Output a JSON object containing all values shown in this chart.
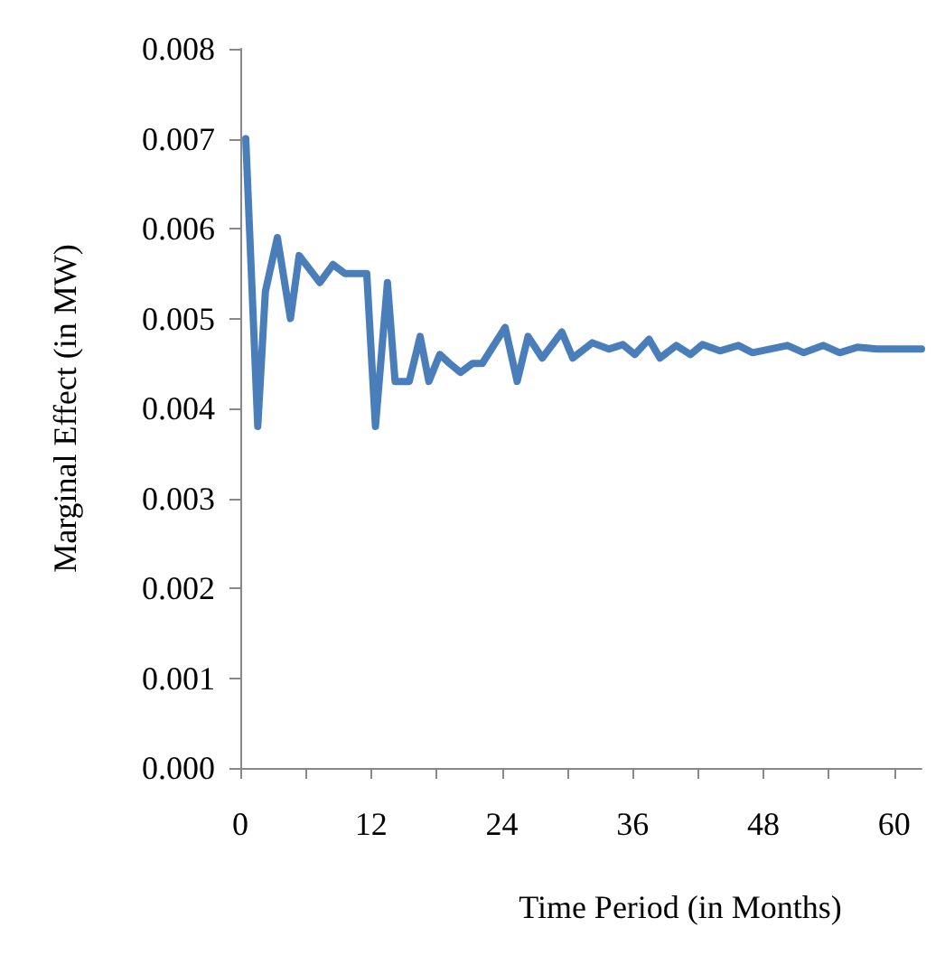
{
  "chart_data": {
    "type": "line",
    "xlabel": "Time Period (in Months)",
    "ylabel": "Marginal Effect (in MW)",
    "x": [
      0.5,
      1.6,
      2.3,
      3.4,
      4.6,
      5.4,
      7.3,
      8.5,
      9.6,
      11.6,
      12.4,
      13.5,
      14.2,
      15.5,
      16.5,
      17.3,
      18.3,
      19.2,
      20.2,
      21.3,
      22.2,
      24.3,
      25.4,
      26.4,
      27.7,
      29.5,
      30.5,
      32.3,
      33.8,
      35.1,
      36.2,
      37.5,
      38.5,
      40,
      41.3,
      42.4,
      44,
      45.7,
      47,
      48.6,
      50.2,
      51.7,
      53.5,
      55,
      56.6,
      58.4,
      60.7,
      62.5
    ],
    "series": [
      {
        "color": "#4a7ebb",
        "values": [
          0.007,
          0.0038,
          0.0053,
          0.0059,
          0.005,
          0.0057,
          0.0054,
          0.0056,
          0.0055,
          0.0055,
          0.0038,
          0.0054,
          0.0043,
          0.0043,
          0.0048,
          0.0043,
          0.0046,
          0.0045,
          0.0044,
          0.0045,
          0.0045,
          0.0049,
          0.0043,
          0.0048,
          0.00456,
          0.00485,
          0.00456,
          0.00473,
          0.00466,
          0.00471,
          0.0046,
          0.00477,
          0.00456,
          0.0047,
          0.0046,
          0.00471,
          0.00464,
          0.0047,
          0.00462,
          0.00466,
          0.0047,
          0.00462,
          0.0047,
          0.00462,
          0.00468,
          0.00466,
          0.00466,
          0.00466
        ]
      }
    ],
    "xlim": [
      0,
      62.5
    ],
    "xticks": [
      0,
      {
        "value": 6,
        "label": null
      },
      12,
      {
        "value": 18,
        "label": null
      },
      24,
      {
        "value": 30,
        "label": null
      },
      36,
      {
        "value": 42,
        "label": null
      },
      48,
      {
        "value": 54,
        "label": null
      },
      60
    ],
    "ylim": [
      0,
      0.008
    ],
    "yticks": [
      {
        "value": 0,
        "label": "0.000"
      },
      {
        "value": 0.001,
        "label": "0.001"
      },
      {
        "value": 0.002,
        "label": "0.002"
      },
      {
        "value": 0.003,
        "label": "0.003"
      },
      {
        "value": 0.004,
        "label": "0.004"
      },
      {
        "value": 0.005,
        "label": "0.005"
      },
      {
        "value": 0.006,
        "label": "0.006"
      },
      {
        "value": 0.007,
        "label": "0.007"
      },
      {
        "value": 0.008,
        "label": "0.008"
      }
    ],
    "grid": false,
    "marker": "none",
    "line_style": "solid"
  }
}
